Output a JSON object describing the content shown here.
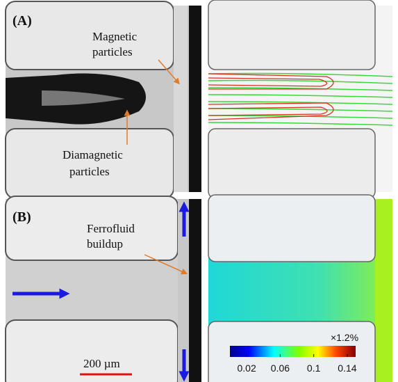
{
  "panel_a": {
    "label": "(A)",
    "magnetic_label": [
      "Magnetic",
      "particles"
    ],
    "diamagnetic_label": [
      "Diamagnetic",
      "particles"
    ]
  },
  "panel_b": {
    "label": "(B)",
    "buildup_label": [
      "Ferrofluid",
      "buildup"
    ],
    "scale_bar": "200 µm",
    "colorbar": {
      "label": "×1.2%",
      "lim": [
        0,
        0.15
      ],
      "ticks": [
        0.02,
        0.06,
        0.1,
        0.14
      ]
    }
  }
}
